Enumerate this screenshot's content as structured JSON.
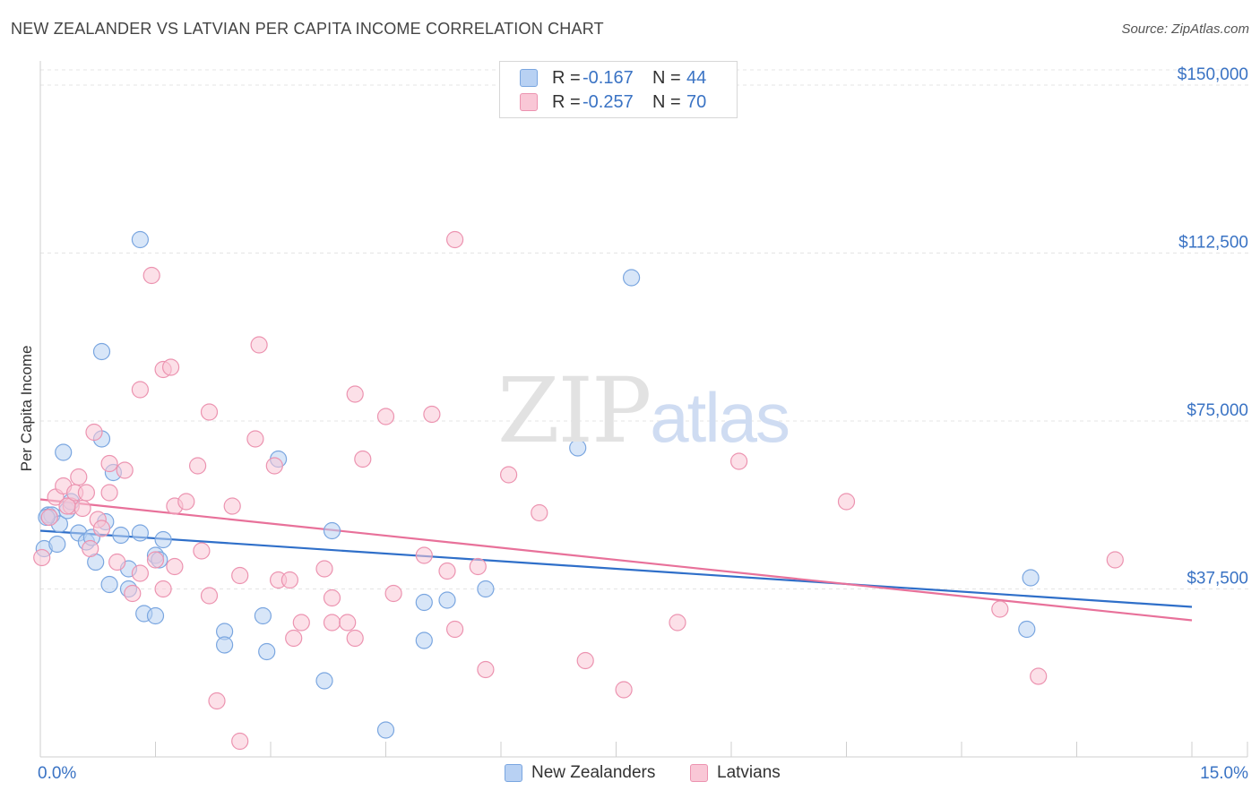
{
  "title": "NEW ZEALANDER VS LATVIAN PER CAPITA INCOME CORRELATION CHART",
  "source": "Source: ZipAtlas.com",
  "watermark": {
    "part1": "ZIP",
    "part2": "atlas"
  },
  "legend_top": [
    {
      "r_label": "R =",
      "r_value": "-0.167",
      "n_label": "N =",
      "n_value": "44"
    },
    {
      "r_label": "R =",
      "r_value": "-0.257",
      "n_label": "N =",
      "n_value": "70"
    }
  ],
  "legend_bottom": [
    "New Zealanders",
    "Latvians"
  ],
  "colors": {
    "blue_fill": "#b8d1f3",
    "blue_stroke": "#7aa6e0",
    "blue_line": "#2f6fc9",
    "pink_fill": "#f9c7d6",
    "pink_stroke": "#ec93b0",
    "pink_line": "#e8719a",
    "tick_label": "#3a73c4"
  },
  "chart_data": {
    "type": "scatter",
    "title": "NEW ZEALANDER VS LATVIAN PER CAPITA INCOME CORRELATION CHART",
    "xlabel": "",
    "ylabel": "Per Capita Income",
    "xlim": [
      0,
      15
    ],
    "ylim": [
      0,
      155000
    ],
    "x_tick_labels": [
      "0.0%",
      "15.0%"
    ],
    "y_ticks": [
      37500,
      75000,
      112500,
      150000
    ],
    "y_tick_labels": [
      "$37,500",
      "$75,000",
      "$112,500",
      "$150,000"
    ],
    "grid": true,
    "series": [
      {
        "name": "New Zealanders",
        "trend": {
          "x0": 0.0,
          "y0": 50500,
          "x1": 15.0,
          "y1": 33500
        },
        "points": [
          [
            0.05,
            46500
          ],
          [
            0.1,
            54000
          ],
          [
            0.15,
            54000
          ],
          [
            0.22,
            47500
          ],
          [
            0.25,
            52000
          ],
          [
            0.3,
            68000
          ],
          [
            0.35,
            55000
          ],
          [
            0.4,
            57000
          ],
          [
            0.5,
            50000
          ],
          [
            0.6,
            48000
          ],
          [
            0.67,
            49000
          ],
          [
            0.72,
            43500
          ],
          [
            0.8,
            71000
          ],
          [
            0.85,
            52500
          ],
          [
            0.9,
            38500
          ],
          [
            0.95,
            63500
          ],
          [
            0.8,
            90500
          ],
          [
            1.05,
            49500
          ],
          [
            1.3,
            50000
          ],
          [
            1.15,
            37500
          ],
          [
            1.15,
            42000
          ],
          [
            1.35,
            32000
          ],
          [
            1.5,
            31500
          ],
          [
            1.5,
            45000
          ],
          [
            1.55,
            44000
          ],
          [
            1.6,
            48500
          ],
          [
            1.3,
            115500
          ],
          [
            2.4,
            28000
          ],
          [
            2.4,
            25000
          ],
          [
            2.9,
            31500
          ],
          [
            2.95,
            23500
          ],
          [
            3.1,
            66500
          ],
          [
            3.8,
            50500
          ],
          [
            3.7,
            17000
          ],
          [
            4.5,
            6000
          ],
          [
            5.0,
            34500
          ],
          [
            5.0,
            26000
          ],
          [
            5.3,
            35000
          ],
          [
            5.8,
            37500
          ],
          [
            7.0,
            69000
          ],
          [
            7.7,
            107000
          ],
          [
            12.9,
            40000
          ],
          [
            12.85,
            28500
          ],
          [
            0.08,
            53500
          ]
        ]
      },
      {
        "name": "Latvians",
        "trend": {
          "x0": 0.0,
          "y0": 57500,
          "x1": 15.0,
          "y1": 30500
        },
        "points": [
          [
            0.02,
            44500
          ],
          [
            0.12,
            53500
          ],
          [
            0.2,
            58000
          ],
          [
            0.3,
            60500
          ],
          [
            0.4,
            56000
          ],
          [
            0.5,
            62500
          ],
          [
            0.55,
            55500
          ],
          [
            0.65,
            46500
          ],
          [
            0.7,
            72500
          ],
          [
            0.75,
            53000
          ],
          [
            0.8,
            51000
          ],
          [
            0.9,
            65500
          ],
          [
            1.0,
            43500
          ],
          [
            1.1,
            64000
          ],
          [
            1.2,
            36500
          ],
          [
            1.3,
            41000
          ],
          [
            1.45,
            107500
          ],
          [
            1.5,
            44000
          ],
          [
            1.6,
            86500
          ],
          [
            1.75,
            56000
          ],
          [
            1.9,
            57000
          ],
          [
            2.05,
            65000
          ],
          [
            2.2,
            77000
          ],
          [
            2.2,
            36000
          ],
          [
            2.3,
            12500
          ],
          [
            2.5,
            56000
          ],
          [
            2.6,
            40500
          ],
          [
            2.6,
            3500
          ],
          [
            2.8,
            71000
          ],
          [
            2.85,
            92000
          ],
          [
            3.05,
            65000
          ],
          [
            3.1,
            39500
          ],
          [
            3.25,
            39500
          ],
          [
            3.3,
            26500
          ],
          [
            3.4,
            30000
          ],
          [
            3.7,
            42000
          ],
          [
            3.8,
            35500
          ],
          [
            3.8,
            30000
          ],
          [
            4.0,
            30000
          ],
          [
            4.1,
            81000
          ],
          [
            4.1,
            26500
          ],
          [
            4.2,
            66500
          ],
          [
            4.5,
            76000
          ],
          [
            4.6,
            36500
          ],
          [
            5.0,
            45000
          ],
          [
            5.1,
            76500
          ],
          [
            5.3,
            41500
          ],
          [
            5.4,
            28500
          ],
          [
            5.4,
            115500
          ],
          [
            5.7,
            42500
          ],
          [
            5.8,
            19500
          ],
          [
            6.1,
            63000
          ],
          [
            6.5,
            54500
          ],
          [
            7.1,
            21500
          ],
          [
            7.6,
            15000
          ],
          [
            8.3,
            30000
          ],
          [
            9.1,
            66000
          ],
          [
            10.5,
            57000
          ],
          [
            12.5,
            33000
          ],
          [
            13.0,
            18000
          ],
          [
            14.0,
            44000
          ],
          [
            1.7,
            87000
          ],
          [
            1.3,
            82000
          ],
          [
            0.35,
            56000
          ],
          [
            0.9,
            59000
          ],
          [
            1.6,
            37500
          ],
          [
            1.75,
            42500
          ],
          [
            2.1,
            46000
          ],
          [
            0.45,
            59000
          ],
          [
            0.6,
            59000
          ]
        ]
      }
    ]
  }
}
